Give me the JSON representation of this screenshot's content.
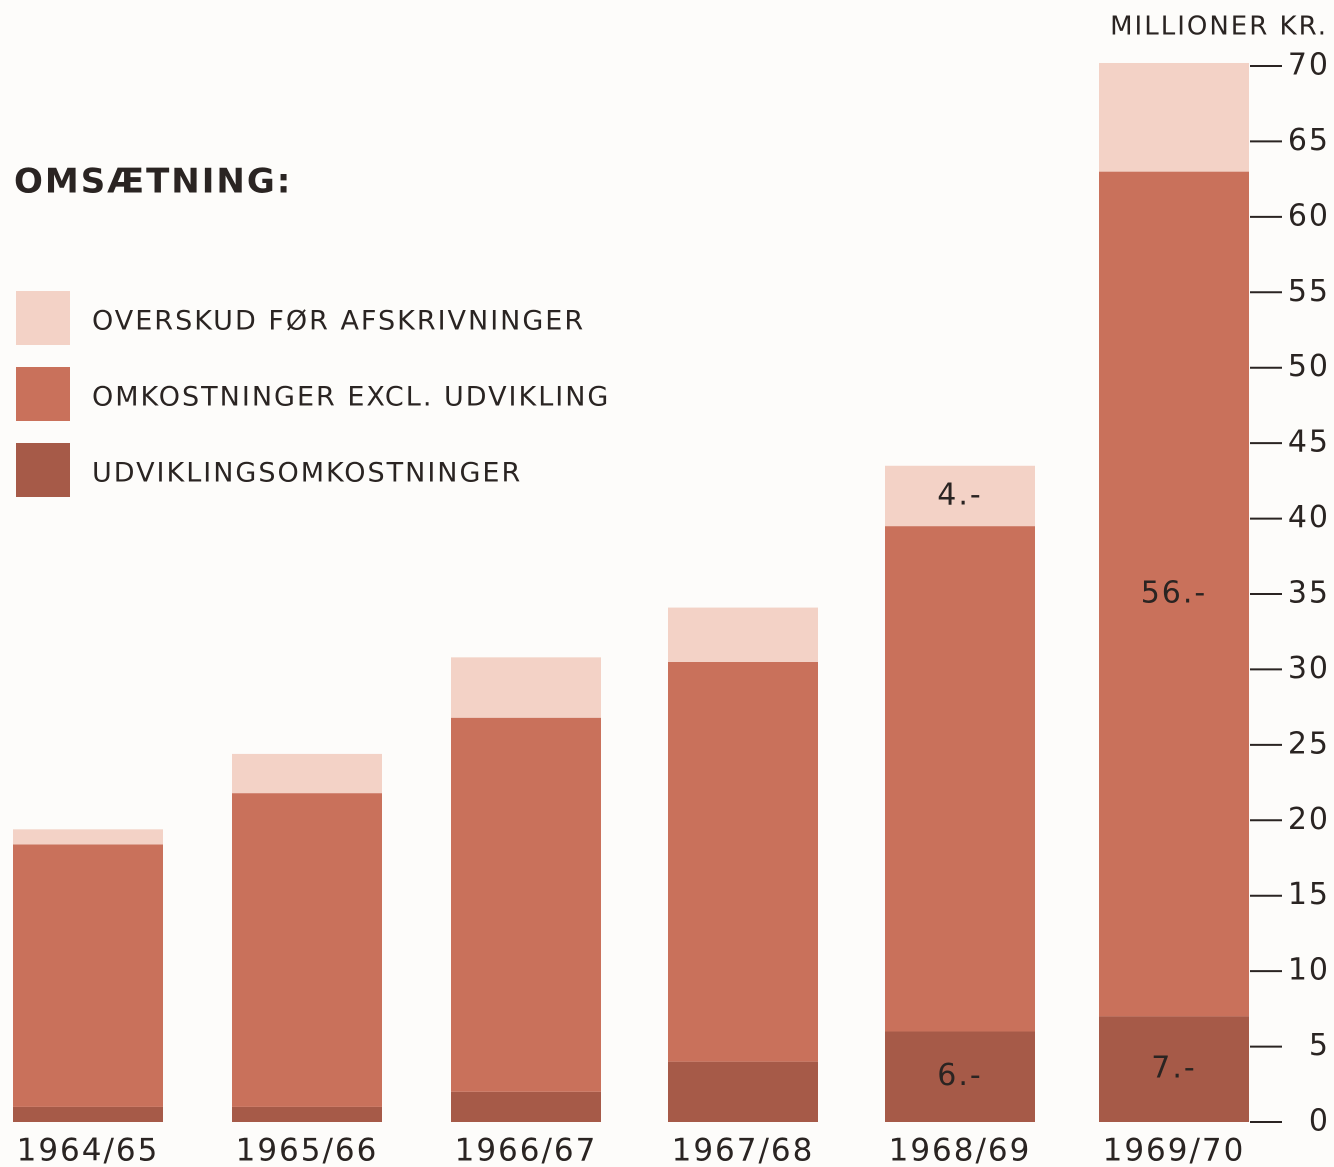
{
  "chart_data": {
    "type": "stacked-bar",
    "title": "OMSÆTNING:",
    "y_axis_label": "MILLIONER  KR.",
    "categories": [
      "1964/65",
      "1965/66",
      "1966/67",
      "1967/68",
      "1968/69",
      "1969/70"
    ],
    "series": [
      {
        "name": "UDVIKLINGSOMKOSTNINGER",
        "color": "#a65a48",
        "values": [
          1.0,
          1.0,
          2.0,
          4.0,
          6,
          7
        ],
        "value_labels": [
          null,
          null,
          null,
          null,
          "6.-",
          "7.-"
        ]
      },
      {
        "name": "OMKOSTNINGER EXCL. UDVIKLING",
        "color": "#c9715b",
        "values": [
          17.4,
          20.8,
          24.8,
          26.5,
          33.5,
          56
        ],
        "value_labels": [
          null,
          null,
          null,
          null,
          null,
          "56.-"
        ]
      },
      {
        "name": "OVERSKUD FØR AFSKRIVNINGER",
        "color": "#f3d2c6",
        "values": [
          1.0,
          2.6,
          4.0,
          3.6,
          4,
          7.2
        ],
        "value_labels": [
          null,
          null,
          null,
          null,
          "4.-",
          null
        ]
      }
    ],
    "ylim": [
      0,
      70
    ],
    "yticks": [
      0,
      5,
      10,
      15,
      20,
      25,
      30,
      35,
      40,
      45,
      50,
      55,
      60,
      65,
      70
    ]
  }
}
